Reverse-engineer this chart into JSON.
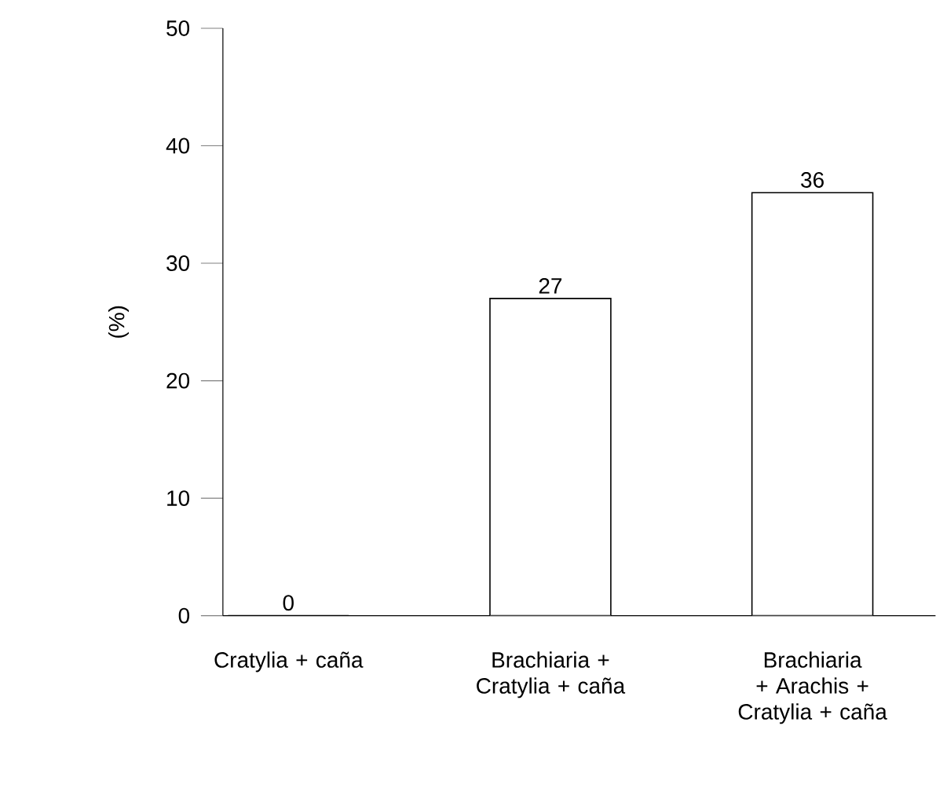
{
  "chart_data": {
    "type": "bar",
    "ylabel": "(%)",
    "categories": [
      "Cratylia + caña",
      "Brachiaria + Cratylia + caña",
      "Brachiaria + Arachis + Cratylia + caña"
    ],
    "values": [
      0,
      27,
      36
    ],
    "color": "#ffffff",
    "data_labels": true,
    "ylim": [
      0,
      50
    ],
    "yticks": [
      0,
      10,
      20,
      30,
      40,
      50
    ]
  }
}
